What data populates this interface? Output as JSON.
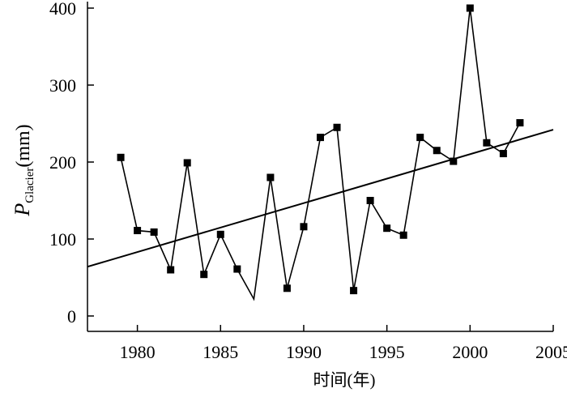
{
  "chart_data": {
    "type": "line",
    "xlabel": "时间(年)",
    "ylabel": {
      "main": "P",
      "subscript": "Glacier",
      "unit": "(mm)"
    },
    "xlim": [
      1977,
      2005
    ],
    "ylim": [
      -20,
      400
    ],
    "xticks": [
      1980,
      1985,
      1990,
      1995,
      2000,
      2005
    ],
    "yticks": [
      0,
      100,
      200,
      300,
      400
    ],
    "grid": false,
    "legend": "none",
    "series": [
      {
        "marker": "square",
        "color": "#000000",
        "points": [
          {
            "x": 1979,
            "y": 206
          },
          {
            "x": 1980,
            "y": 111
          },
          {
            "x": 1981,
            "y": 109
          },
          {
            "x": 1982,
            "y": 60
          },
          {
            "x": 1983,
            "y": 199
          },
          {
            "x": 1984,
            "y": 54
          },
          {
            "x": 1985,
            "y": 106
          },
          {
            "x": 1986,
            "y": 61
          },
          {
            "x": 1987,
            "y": 22,
            "marker": false
          },
          {
            "x": 1988,
            "y": 180
          },
          {
            "x": 1989,
            "y": 36
          },
          {
            "x": 1990,
            "y": 116
          },
          {
            "x": 1991,
            "y": 232
          },
          {
            "x": 1992,
            "y": 245
          },
          {
            "x": 1993,
            "y": 33
          },
          {
            "x": 1994,
            "y": 150
          },
          {
            "x": 1995,
            "y": 114
          },
          {
            "x": 1996,
            "y": 105
          },
          {
            "x": 1997,
            "y": 232
          },
          {
            "x": 1998,
            "y": 215
          },
          {
            "x": 1999,
            "y": 201
          },
          {
            "x": 2000,
            "y": 400
          },
          {
            "x": 2001,
            "y": 225
          },
          {
            "x": 2002,
            "y": 211
          },
          {
            "x": 2003,
            "y": 251
          }
        ]
      }
    ],
    "trend_line": {
      "type": "linear",
      "from": {
        "x": 1977,
        "y": 64
      },
      "to": {
        "x": 2005,
        "y": 242
      },
      "color": "#000000"
    }
  }
}
